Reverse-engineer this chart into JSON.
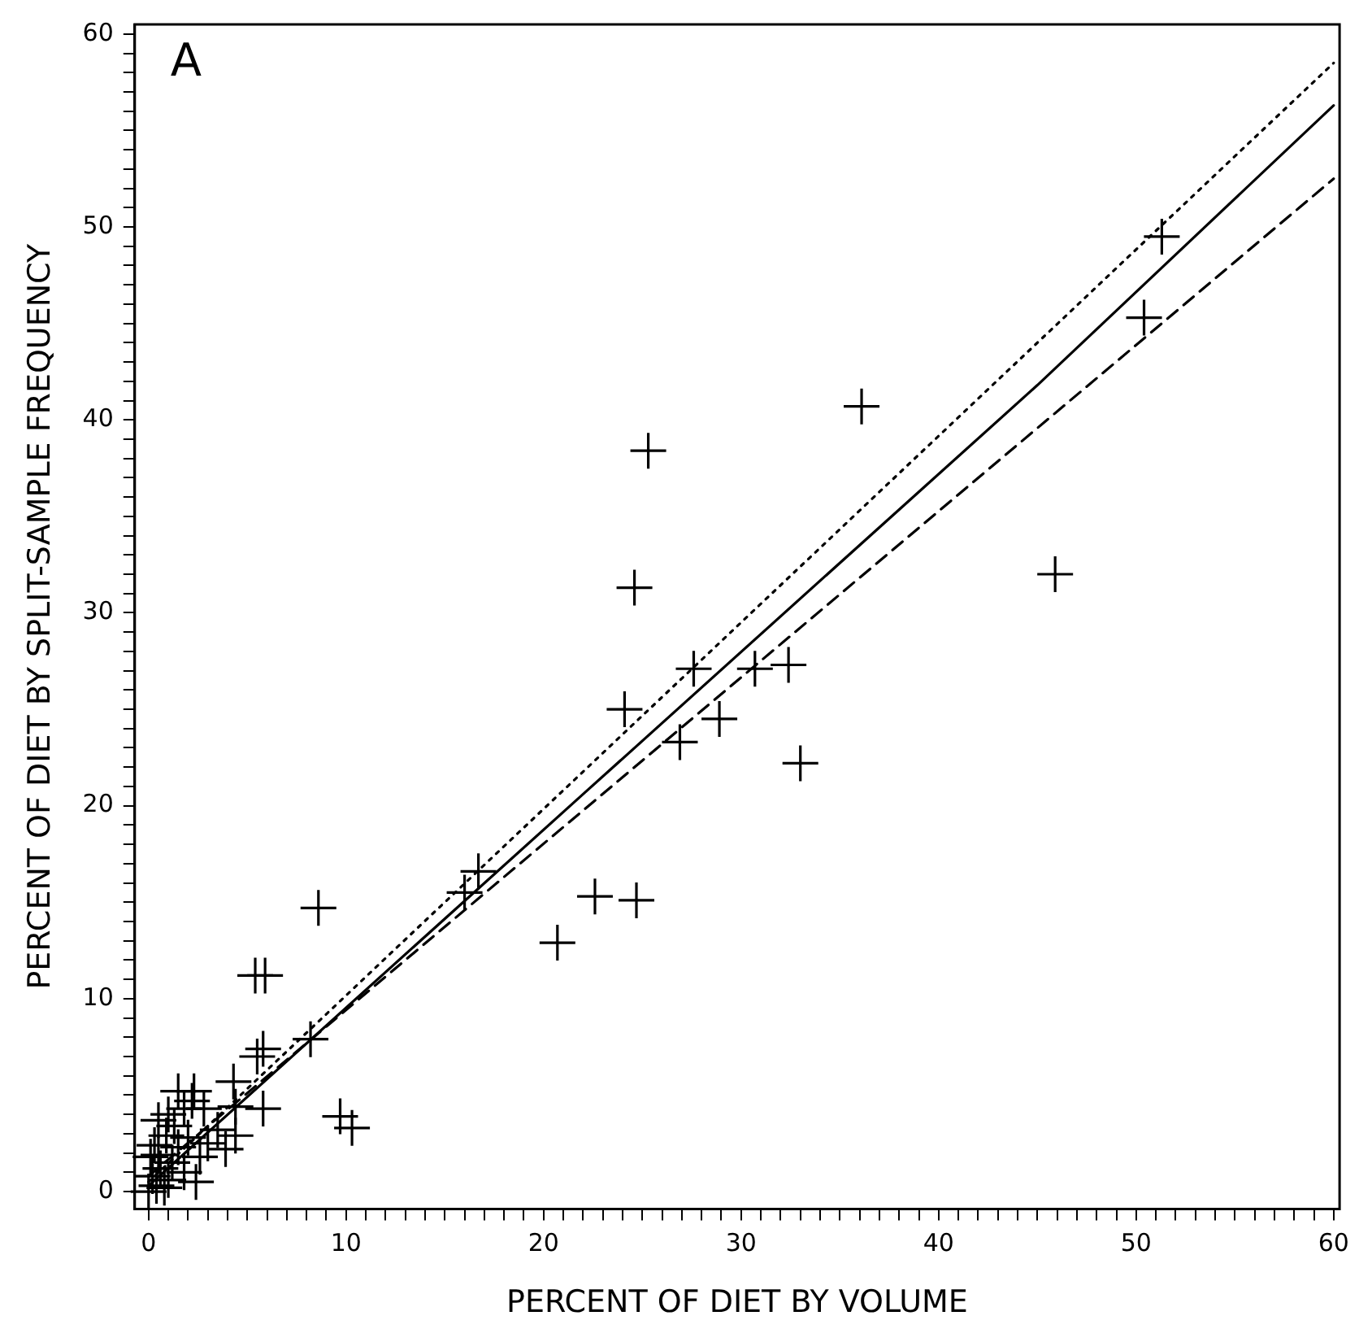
{
  "chart_data": {
    "type": "scatter",
    "xlabel": "PERCENT OF DIET BY VOLUME",
    "ylabel": "PERCENT OF DIET BY SPLIT-SAMPLE FREQUENCY",
    "annotations": [
      "A"
    ],
    "xlim": [
      -0.7,
      60.3
    ],
    "ylim": [
      -0.9,
      60.5
    ],
    "xticks": [
      0,
      {
        "value": 1,
        "label": null
      },
      {
        "value": 2,
        "label": null
      },
      {
        "value": 3,
        "label": null
      },
      {
        "value": 4,
        "label": null
      },
      {
        "value": 5,
        "label": null
      },
      {
        "value": 6,
        "label": null
      },
      {
        "value": 7,
        "label": null
      },
      {
        "value": 8,
        "label": null
      },
      {
        "value": 9,
        "label": null
      },
      10,
      {
        "value": 11,
        "label": null
      },
      {
        "value": 12,
        "label": null
      },
      {
        "value": 13,
        "label": null
      },
      {
        "value": 14,
        "label": null
      },
      {
        "value": 15,
        "label": null
      },
      {
        "value": 16,
        "label": null
      },
      {
        "value": 17,
        "label": null
      },
      {
        "value": 18,
        "label": null
      },
      {
        "value": 19,
        "label": null
      },
      20,
      {
        "value": 21,
        "label": null
      },
      {
        "value": 22,
        "label": null
      },
      {
        "value": 23,
        "label": null
      },
      {
        "value": 24,
        "label": null
      },
      {
        "value": 25,
        "label": null
      },
      {
        "value": 26,
        "label": null
      },
      {
        "value": 27,
        "label": null
      },
      {
        "value": 28,
        "label": null
      },
      {
        "value": 29,
        "label": null
      },
      30,
      {
        "value": 31,
        "label": null
      },
      {
        "value": 32,
        "label": null
      },
      {
        "value": 33,
        "label": null
      },
      {
        "value": 34,
        "label": null
      },
      {
        "value": 35,
        "label": null
      },
      {
        "value": 36,
        "label": null
      },
      {
        "value": 37,
        "label": null
      },
      {
        "value": 38,
        "label": null
      },
      {
        "value": 39,
        "label": null
      },
      40,
      {
        "value": 41,
        "label": null
      },
      {
        "value": 42,
        "label": null
      },
      {
        "value": 43,
        "label": null
      },
      {
        "value": 44,
        "label": null
      },
      {
        "value": 45,
        "label": null
      },
      {
        "value": 46,
        "label": null
      },
      {
        "value": 47,
        "label": null
      },
      {
        "value": 48,
        "label": null
      },
      {
        "value": 49,
        "label": null
      },
      50,
      {
        "value": 51,
        "label": null
      },
      {
        "value": 52,
        "label": null
      },
      {
        "value": 53,
        "label": null
      },
      {
        "value": 54,
        "label": null
      },
      {
        "value": 55,
        "label": null
      },
      {
        "value": 56,
        "label": null
      },
      {
        "value": 57,
        "label": null
      },
      {
        "value": 58,
        "label": null
      },
      {
        "value": 59,
        "label": null
      },
      60
    ],
    "yticks": [
      0,
      {
        "value": 1,
        "label": null
      },
      {
        "value": 2,
        "label": null
      },
      {
        "value": 3,
        "label": null
      },
      {
        "value": 4,
        "label": null
      },
      {
        "value": 5,
        "label": null
      },
      {
        "value": 6,
        "label": null
      },
      {
        "value": 7,
        "label": null
      },
      {
        "value": 8,
        "label": null
      },
      {
        "value": 9,
        "label": null
      },
      10,
      {
        "value": 11,
        "label": null
      },
      {
        "value": 12,
        "label": null
      },
      {
        "value": 13,
        "label": null
      },
      {
        "value": 14,
        "label": null
      },
      {
        "value": 15,
        "label": null
      },
      {
        "value": 16,
        "label": null
      },
      {
        "value": 17,
        "label": null
      },
      {
        "value": 18,
        "label": null
      },
      {
        "value": 19,
        "label": null
      },
      20,
      {
        "value": 21,
        "label": null
      },
      {
        "value": 22,
        "label": null
      },
      {
        "value": 23,
        "label": null
      },
      {
        "value": 24,
        "label": null
      },
      {
        "value": 25,
        "label": null
      },
      {
        "value": 26,
        "label": null
      },
      {
        "value": 27,
        "label": null
      },
      {
        "value": 28,
        "label": null
      },
      {
        "value": 29,
        "label": null
      },
      30,
      {
        "value": 31,
        "label": null
      },
      {
        "value": 32,
        "label": null
      },
      {
        "value": 33,
        "label": null
      },
      {
        "value": 34,
        "label": null
      },
      {
        "value": 35,
        "label": null
      },
      {
        "value": 36,
        "label": null
      },
      {
        "value": 37,
        "label": null
      },
      {
        "value": 38,
        "label": null
      },
      {
        "value": 39,
        "label": null
      },
      40,
      {
        "value": 41,
        "label": null
      },
      {
        "value": 42,
        "label": null
      },
      {
        "value": 43,
        "label": null
      },
      {
        "value": 44,
        "label": null
      },
      {
        "value": 45,
        "label": null
      },
      {
        "value": 46,
        "label": null
      },
      {
        "value": 47,
        "label": null
      },
      {
        "value": 48,
        "label": null
      },
      {
        "value": 49,
        "label": null
      },
      50,
      {
        "value": 51,
        "label": null
      },
      {
        "value": 52,
        "label": null
      },
      {
        "value": 53,
        "label": null
      },
      {
        "value": 54,
        "label": null
      },
      {
        "value": 55,
        "label": null
      },
      {
        "value": 56,
        "label": null
      },
      {
        "value": 57,
        "label": null
      },
      {
        "value": 58,
        "label": null
      },
      {
        "value": 59,
        "label": null
      },
      60
    ],
    "grid": false,
    "legend": false,
    "series": [
      {
        "color": "#000000",
        "marker": "cross",
        "x": [
          36.1,
          25.3,
          24.6,
          45.9,
          27.6,
          30.7,
          32.4,
          24.1,
          28.9,
          26.9,
          33.0,
          22.6,
          24.7,
          50.4,
          51.3,
          16.0,
          16.7,
          20.7,
          8.6,
          5.4,
          5.9,
          5.5,
          5.8,
          8.2,
          4.3,
          9.7,
          10.3,
          5.8,
          1.5,
          2.2,
          2.3,
          1.8,
          2.8,
          0.5,
          0.9,
          3.5,
          4.4,
          3.9,
          4.4,
          0.1,
          2.4,
          0.4,
          1.5,
          2.6,
          0.2,
          0.6,
          1.0,
          1.2,
          0.3,
          0.8,
          1.8,
          2.0,
          0.0,
          0.5,
          1.3,
          3.0,
          1.0
        ],
        "values": [
          40.7,
          38.4,
          31.3,
          32.0,
          27.1,
          27.1,
          27.3,
          25.0,
          24.5,
          23.3,
          22.2,
          15.3,
          15.1,
          45.3,
          49.5,
          15.5,
          16.6,
          12.9,
          14.7,
          11.2,
          11.2,
          7.0,
          7.4,
          7.9,
          5.7,
          3.9,
          3.3,
          4.3,
          5.2,
          4.7,
          5.2,
          4.3,
          4.3,
          3.7,
          2.9,
          3.2,
          2.9,
          2.2,
          4.4,
          1.8,
          0.5,
          0.3,
          2.3,
          1.8,
          0.8,
          1.2,
          0.6,
          1.5,
          2.4,
          0.2,
          1.0,
          2.8,
          0.0,
          1.9,
          3.4,
          2.5,
          4.0
        ]
      },
      {
        "type": "line",
        "color": "#000000",
        "marker": "none",
        "line_style": "dotted",
        "x": [
          0,
          60
        ],
        "values": [
          0.5,
          58.5
        ]
      },
      {
        "type": "line",
        "color": "#000000",
        "marker": "none",
        "line_style": "solid",
        "x": [
          0,
          22,
          45,
          60
        ],
        "values": [
          0.3,
          20.6,
          41.8,
          56.3
        ]
      },
      {
        "type": "line",
        "color": "#000000",
        "marker": "none",
        "line_style": "dashed",
        "x": [
          0,
          60
        ],
        "values": [
          0.8,
          52.5
        ]
      }
    ]
  }
}
